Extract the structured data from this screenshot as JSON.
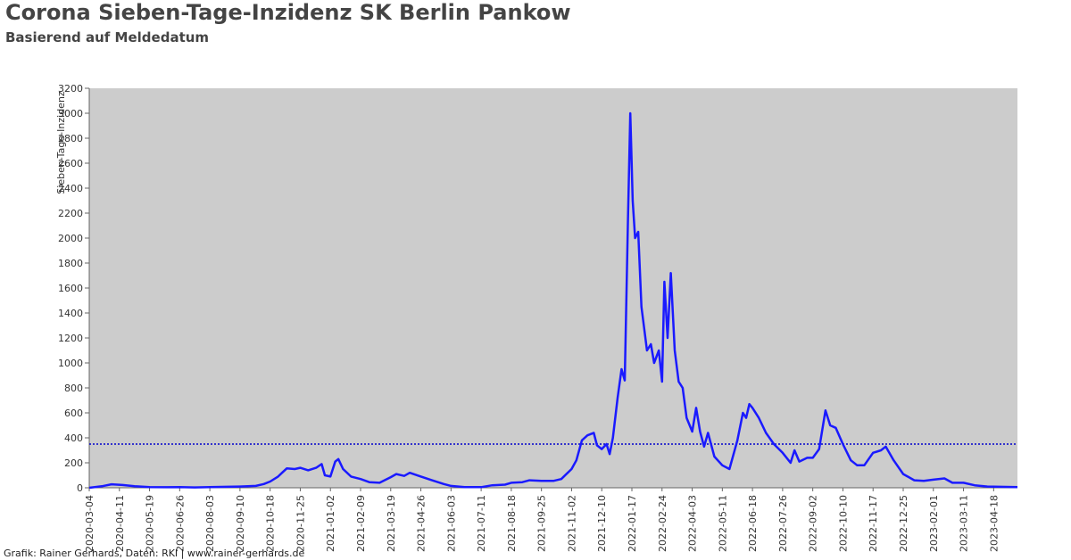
{
  "header": {
    "title": "Corona Sieben-Tage-Inzidenz SK Berlin Pankow",
    "subtitle": "Basierend auf Meldedatum"
  },
  "footer": {
    "credit": "Grafik: Rainer Gerhards, Daten: RKI | www.rainer-gerhards.de"
  },
  "chart_data": {
    "type": "line",
    "ylabel": "Sieben-Tage-Inzidenz",
    "ylim": [
      0,
      3200
    ],
    "yticks": [
      0,
      200,
      400,
      600,
      800,
      1000,
      1200,
      1400,
      1600,
      1800,
      2000,
      2200,
      2400,
      2600,
      2800,
      3000,
      3200
    ],
    "xlim": [
      "2020-03-04",
      "2023-05-18"
    ],
    "xticks": [
      "2020-03-04",
      "2020-04-11",
      "2020-05-19",
      "2020-06-26",
      "2020-08-03",
      "2020-09-10",
      "2020-10-18",
      "2020-11-25",
      "2021-01-02",
      "2021-02-09",
      "2021-03-19",
      "2021-04-26",
      "2021-06-03",
      "2021-07-11",
      "2021-08-18",
      "2021-09-25",
      "2021-11-02",
      "2021-12-10",
      "2022-01-17",
      "2022-02-24",
      "2022-04-03",
      "2022-05-11",
      "2022-06-18",
      "2022-07-26",
      "2022-09-02",
      "2022-10-10",
      "2022-11-17",
      "2022-12-25",
      "2023-02-01",
      "2023-03-11",
      "2023-04-18"
    ],
    "grid": false,
    "colors": {
      "plot_background": "#cccccc",
      "line": "#1a1aff",
      "reference_line": "#0000cc"
    },
    "reference_line": {
      "value": 350,
      "style": "dotted"
    },
    "series": [
      {
        "points": [
          [
            "2020-03-04",
            0
          ],
          [
            "2020-03-20",
            12
          ],
          [
            "2020-04-01",
            28
          ],
          [
            "2020-04-15",
            22
          ],
          [
            "2020-04-30",
            12
          ],
          [
            "2020-05-19",
            5
          ],
          [
            "2020-06-10",
            4
          ],
          [
            "2020-06-26",
            6
          ],
          [
            "2020-07-15",
            3
          ],
          [
            "2020-08-03",
            6
          ],
          [
            "2020-08-25",
            8
          ],
          [
            "2020-09-10",
            10
          ],
          [
            "2020-09-30",
            15
          ],
          [
            "2020-10-10",
            30
          ],
          [
            "2020-10-18",
            50
          ],
          [
            "2020-10-28",
            90
          ],
          [
            "2020-11-02",
            120
          ],
          [
            "2020-11-08",
            155
          ],
          [
            "2020-11-18",
            150
          ],
          [
            "2020-11-25",
            160
          ],
          [
            "2020-12-05",
            140
          ],
          [
            "2020-12-15",
            160
          ],
          [
            "2020-12-22",
            190
          ],
          [
            "2020-12-26",
            100
          ],
          [
            "2021-01-02",
            90
          ],
          [
            "2021-01-08",
            210
          ],
          [
            "2021-01-12",
            230
          ],
          [
            "2021-01-18",
            150
          ],
          [
            "2021-01-28",
            90
          ],
          [
            "2021-02-09",
            70
          ],
          [
            "2021-02-20",
            45
          ],
          [
            "2021-03-05",
            40
          ],
          [
            "2021-03-19",
            85
          ],
          [
            "2021-03-26",
            110
          ],
          [
            "2021-04-05",
            95
          ],
          [
            "2021-04-12",
            120
          ],
          [
            "2021-04-26",
            90
          ],
          [
            "2021-05-10",
            60
          ],
          [
            "2021-05-25",
            30
          ],
          [
            "2021-06-03",
            15
          ],
          [
            "2021-06-20",
            5
          ],
          [
            "2021-07-11",
            5
          ],
          [
            "2021-07-25",
            20
          ],
          [
            "2021-08-10",
            25
          ],
          [
            "2021-08-18",
            40
          ],
          [
            "2021-09-01",
            45
          ],
          [
            "2021-09-10",
            60
          ],
          [
            "2021-09-25",
            55
          ],
          [
            "2021-10-10",
            55
          ],
          [
            "2021-10-20",
            70
          ],
          [
            "2021-11-02",
            150
          ],
          [
            "2021-11-08",
            220
          ],
          [
            "2021-11-15",
            380
          ],
          [
            "2021-11-22",
            420
          ],
          [
            "2021-11-30",
            440
          ],
          [
            "2021-12-04",
            340
          ],
          [
            "2021-12-10",
            310
          ],
          [
            "2021-12-16",
            350
          ],
          [
            "2021-12-20",
            270
          ],
          [
            "2021-12-24",
            400
          ],
          [
            "2021-12-30",
            720
          ],
          [
            "2022-01-04",
            950
          ],
          [
            "2022-01-08",
            860
          ],
          [
            "2022-01-12",
            2150
          ],
          [
            "2022-01-15",
            3000
          ],
          [
            "2022-01-18",
            2300
          ],
          [
            "2022-01-21",
            2000
          ],
          [
            "2022-01-25",
            2050
          ],
          [
            "2022-01-29",
            1450
          ],
          [
            "2022-02-05",
            1100
          ],
          [
            "2022-02-10",
            1150
          ],
          [
            "2022-02-14",
            1000
          ],
          [
            "2022-02-20",
            1100
          ],
          [
            "2022-02-24",
            850
          ],
          [
            "2022-02-27",
            1650
          ],
          [
            "2022-03-03",
            1200
          ],
          [
            "2022-03-07",
            1720
          ],
          [
            "2022-03-12",
            1100
          ],
          [
            "2022-03-17",
            850
          ],
          [
            "2022-03-22",
            800
          ],
          [
            "2022-03-27",
            560
          ],
          [
            "2022-04-03",
            450
          ],
          [
            "2022-04-08",
            640
          ],
          [
            "2022-04-13",
            450
          ],
          [
            "2022-04-18",
            330
          ],
          [
            "2022-04-23",
            440
          ],
          [
            "2022-05-01",
            250
          ],
          [
            "2022-05-11",
            180
          ],
          [
            "2022-05-20",
            150
          ],
          [
            "2022-05-30",
            380
          ],
          [
            "2022-06-06",
            600
          ],
          [
            "2022-06-10",
            560
          ],
          [
            "2022-06-14",
            670
          ],
          [
            "2022-06-18",
            640
          ],
          [
            "2022-06-26",
            560
          ],
          [
            "2022-07-05",
            440
          ],
          [
            "2022-07-15",
            350
          ],
          [
            "2022-07-26",
            280
          ],
          [
            "2022-08-05",
            200
          ],
          [
            "2022-08-10",
            300
          ],
          [
            "2022-08-16",
            210
          ],
          [
            "2022-08-26",
            240
          ],
          [
            "2022-09-02",
            240
          ],
          [
            "2022-09-10",
            310
          ],
          [
            "2022-09-18",
            620
          ],
          [
            "2022-09-24",
            500
          ],
          [
            "2022-10-01",
            480
          ],
          [
            "2022-10-10",
            350
          ],
          [
            "2022-10-20",
            220
          ],
          [
            "2022-10-28",
            180
          ],
          [
            "2022-11-06",
            180
          ],
          [
            "2022-11-17",
            280
          ],
          [
            "2022-11-27",
            300
          ],
          [
            "2022-12-03",
            330
          ],
          [
            "2022-12-13",
            220
          ],
          [
            "2022-12-25",
            110
          ],
          [
            "2023-01-08",
            60
          ],
          [
            "2023-01-20",
            55
          ],
          [
            "2023-02-01",
            65
          ],
          [
            "2023-02-15",
            75
          ],
          [
            "2023-02-25",
            40
          ],
          [
            "2023-03-11",
            40
          ],
          [
            "2023-03-25",
            20
          ],
          [
            "2023-04-10",
            10
          ],
          [
            "2023-04-25",
            8
          ],
          [
            "2023-05-18",
            5
          ]
        ]
      }
    ]
  }
}
